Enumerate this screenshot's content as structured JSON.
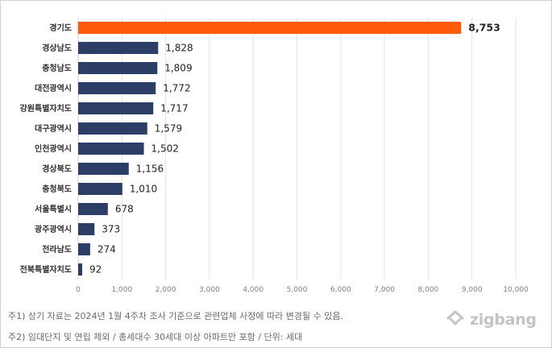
{
  "chart_data": {
    "type": "bar",
    "orientation": "horizontal",
    "categories": [
      "경기도",
      "경상남도",
      "충청남도",
      "대전광역시",
      "강원특별자치도",
      "대구광역시",
      "인천광역시",
      "경상북도",
      "충청북도",
      "서울특별시",
      "광주광역시",
      "전라남도",
      "전북특별자치도"
    ],
    "values": [
      8753,
      1828,
      1809,
      1772,
      1717,
      1579,
      1502,
      1156,
      1010,
      678,
      373,
      274,
      92
    ],
    "value_labels": [
      "8,753",
      "1,828",
      "1,809",
      "1,772",
      "1,717",
      "1,579",
      "1,502",
      "1,156",
      "1,010",
      "678",
      "373",
      "274",
      "92"
    ],
    "xlim": [
      0,
      10000
    ],
    "x_ticks": [
      0,
      1000,
      2000,
      3000,
      4000,
      5000,
      6000,
      7000,
      8000,
      9000,
      10000
    ],
    "x_tick_labels": [
      "0",
      "1,000",
      "2,000",
      "3,000",
      "4,000",
      "5,000",
      "6,000",
      "7,000",
      "8,000",
      "9,000",
      "10,000"
    ],
    "grid": true,
    "highlight_index": 0,
    "colors": {
      "highlight": "#ff5a0a",
      "bar": "#2c3e66",
      "grid": "#e3e3e3"
    }
  },
  "footnotes": {
    "note1": "주1) 상기 자료는 2024년 1월 4주차 조사 기준으로 관련업체 사정에 따라 변경될 수 있음.",
    "note2": "주2) 임대단지 및 연립 제외 / 총세대수 30세대 이상 아파트만 포함 / 단위: 세대"
  },
  "brand": {
    "name": "zigbang",
    "icon": "zigbang-logo-icon"
  }
}
